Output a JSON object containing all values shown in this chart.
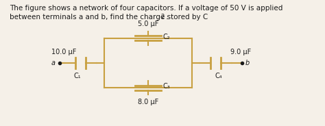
{
  "title_line1": "The figure shows a network of four capacitors. If a voltage of 50 V is applied",
  "title_line2": "between terminals a and b, find the charge stored by C",
  "title_line2_sub": "2",
  "bg_color": "#f5f0e8",
  "text_color": "#1a1a1a",
  "wire_color": "#c8a040",
  "cap_color": "#c8a040",
  "labels": {
    "C1": "C₁",
    "C2": "C₂",
    "C3": "C₃",
    "C4": "C₄",
    "V1": "10.0 μF",
    "V2": "5.0 μF",
    "V3": "8.0 μF",
    "V4": "9.0 μF"
  },
  "node_a": "a",
  "node_b": "b",
  "fig_width": 4.74,
  "fig_height": 1.84,
  "dpi": 100
}
